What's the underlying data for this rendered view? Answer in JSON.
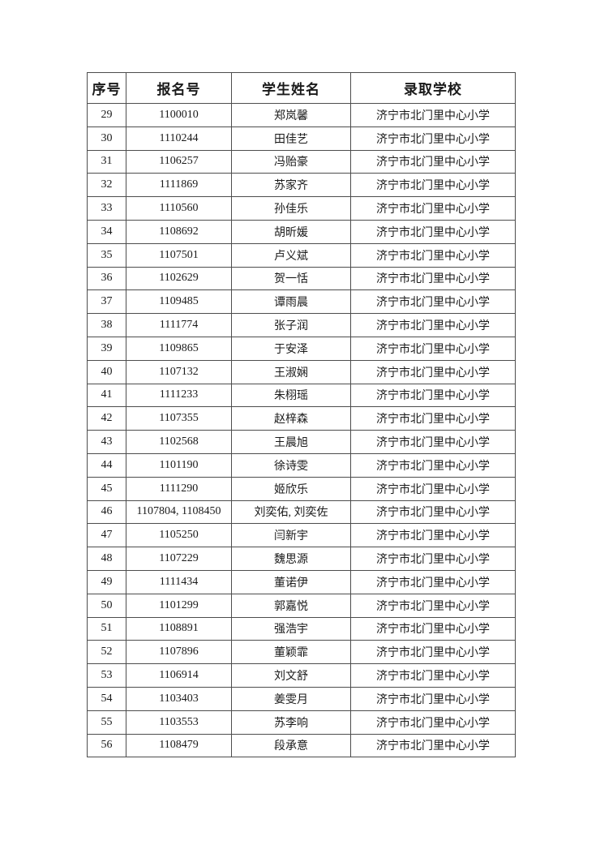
{
  "table": {
    "headers": [
      "序号",
      "报名号",
      "学生姓名",
      "录取学校"
    ],
    "rows": [
      [
        "29",
        "1100010",
        "郑岚馨",
        "济宁市北门里中心小学"
      ],
      [
        "30",
        "1110244",
        "田佳艺",
        "济宁市北门里中心小学"
      ],
      [
        "31",
        "1106257",
        "冯贻豪",
        "济宁市北门里中心小学"
      ],
      [
        "32",
        "1111869",
        "苏家齐",
        "济宁市北门里中心小学"
      ],
      [
        "33",
        "1110560",
        "孙佳乐",
        "济宁市北门里中心小学"
      ],
      [
        "34",
        "1108692",
        "胡昕媛",
        "济宁市北门里中心小学"
      ],
      [
        "35",
        "1107501",
        "卢义斌",
        "济宁市北门里中心小学"
      ],
      [
        "36",
        "1102629",
        "贺一恬",
        "济宁市北门里中心小学"
      ],
      [
        "37",
        "1109485",
        "谭雨晨",
        "济宁市北门里中心小学"
      ],
      [
        "38",
        "1111774",
        "张子润",
        "济宁市北门里中心小学"
      ],
      [
        "39",
        "1109865",
        "于安泽",
        "济宁市北门里中心小学"
      ],
      [
        "40",
        "1107132",
        "王淑娴",
        "济宁市北门里中心小学"
      ],
      [
        "41",
        "1111233",
        "朱栩瑶",
        "济宁市北门里中心小学"
      ],
      [
        "42",
        "1107355",
        "赵梓森",
        "济宁市北门里中心小学"
      ],
      [
        "43",
        "1102568",
        "王晨旭",
        "济宁市北门里中心小学"
      ],
      [
        "44",
        "1101190",
        "徐诗雯",
        "济宁市北门里中心小学"
      ],
      [
        "45",
        "1111290",
        "姬欣乐",
        "济宁市北门里中心小学"
      ],
      [
        "46",
        "1107804, 1108450",
        "刘奕佑, 刘奕佐",
        "济宁市北门里中心小学"
      ],
      [
        "47",
        "1105250",
        "闫新宇",
        "济宁市北门里中心小学"
      ],
      [
        "48",
        "1107229",
        "魏思源",
        "济宁市北门里中心小学"
      ],
      [
        "49",
        "1111434",
        "董诺伊",
        "济宁市北门里中心小学"
      ],
      [
        "50",
        "1101299",
        "郭嘉悦",
        "济宁市北门里中心小学"
      ],
      [
        "51",
        "1108891",
        "强浩宇",
        "济宁市北门里中心小学"
      ],
      [
        "52",
        "1107896",
        "董颖霏",
        "济宁市北门里中心小学"
      ],
      [
        "53",
        "1106914",
        "刘文舒",
        "济宁市北门里中心小学"
      ],
      [
        "54",
        "1103403",
        "姜雯月",
        "济宁市北门里中心小学"
      ],
      [
        "55",
        "1103553",
        "苏李响",
        "济宁市北门里中心小学"
      ],
      [
        "56",
        "1108479",
        "段承意",
        "济宁市北门里中心小学"
      ]
    ]
  },
  "colors": {
    "page_background": "#ffffff",
    "table_border": "#4d4d4d",
    "text": "#1a1a1a"
  }
}
